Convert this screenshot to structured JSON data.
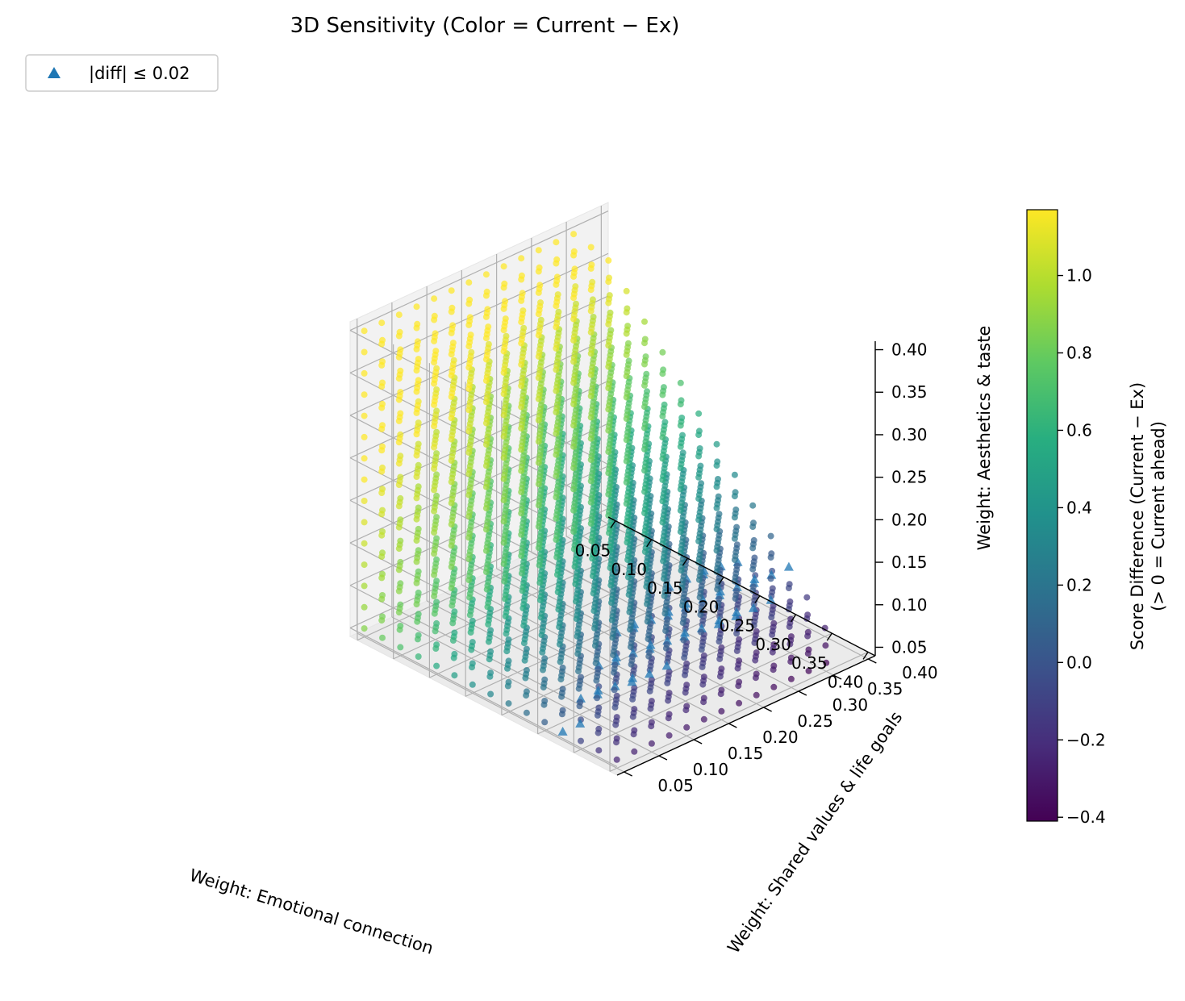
{
  "chart_data": {
    "type": "scatter",
    "title": "3D Sensitivity (Color = Current − Ex)",
    "xlabel": "Weight: Emotional connection",
    "ylabel": "Weight: Shared values & life goals",
    "zlabel": "Weight: Aesthetics & taste",
    "xticks": [
      "0.05",
      "0.10",
      "0.15",
      "0.20",
      "0.25",
      "0.30",
      "0.35",
      "0.40"
    ],
    "yticks": [
      "0.05",
      "0.10",
      "0.15",
      "0.20",
      "0.25",
      "0.30",
      "0.35",
      "0.40"
    ],
    "zticks": [
      "0.05",
      "0.10",
      "0.15",
      "0.20",
      "0.25",
      "0.30",
      "0.35",
      "0.40"
    ],
    "xlim": [
      0.04,
      0.41
    ],
    "ylim": [
      0.04,
      0.41
    ],
    "zlim": [
      0.04,
      0.41
    ],
    "grid": true,
    "colormap": "viridis",
    "grid_step": 0.025,
    "weight_sum_max": 0.8,
    "legend": {
      "placement": "upper-left",
      "label": "|diff| ≤ 0.02",
      "marker": "triangle",
      "color": "#1f77b4"
    },
    "colorbar": {
      "label_line1": "Score Difference (Current − Ex)",
      "label_line2": "(> 0 = Current ahead)",
      "range": [
        -0.41,
        1.17
      ],
      "ticks": [
        "−0.4",
        "−0.2",
        "0.0",
        "0.2",
        "0.4",
        "0.6",
        "0.8",
        "1.0"
      ],
      "tick_values": [
        -0.4,
        -0.2,
        0.0,
        0.2,
        0.4,
        0.6,
        0.8,
        1.0
      ]
    },
    "marker_color": "#1f77b4"
  }
}
